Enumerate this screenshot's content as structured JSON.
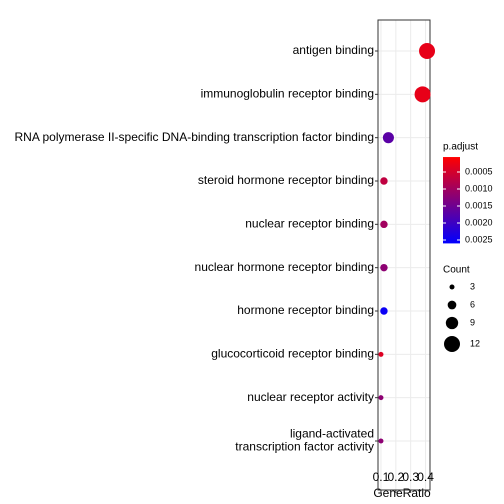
{
  "chart_data": {
    "type": "dot",
    "x_label": "GeneRatio",
    "categories": [
      "antigen binding",
      "immunoglobulin receptor binding",
      "RNA polymerase II-specific DNA-binding transcription factor binding",
      "steroid hormone receptor binding",
      "nuclear receptor binding",
      "nuclear hormone receptor binding",
      "hormone receptor binding",
      "glucocorticoid receptor binding",
      "nuclear receptor activity",
      [
        "ligand-activated",
        "transcription factor activity"
      ]
    ],
    "gene_ratio": [
      0.41,
      0.38,
      0.15,
      0.12,
      0.12,
      0.12,
      0.12,
      0.1,
      0.1,
      0.1
    ],
    "p_adjust": [
      0.0003,
      0.0003,
      0.0017,
      0.0007,
      0.001,
      0.0012,
      0.0025,
      0.0004,
      0.0012,
      0.0012
    ],
    "count": [
      12,
      12,
      8,
      5,
      5,
      5,
      5,
      3,
      3,
      3
    ],
    "xlim": [
      0.08,
      0.43
    ],
    "xticks": [
      0.1,
      0.2,
      0.3,
      0.4
    ],
    "grid": true,
    "color_title": "p.adjust",
    "color_low": "#ff0000",
    "color_high": "#0000ff",
    "clim": [
      6e-05,
      0.0026
    ],
    "cticks": [
      0.0005,
      {
        "value": 0.001,
        "label": "0.0010"
      },
      0.0015,
      {
        "value": 0.002,
        "label": "0.0020"
      },
      0.0025
    ],
    "size_title": "Count",
    "size_ticks": [
      3,
      6,
      9,
      12
    ]
  }
}
